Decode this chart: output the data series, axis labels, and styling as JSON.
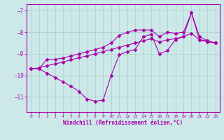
{
  "xlabel": "Windchill (Refroidissement éolien,°C)",
  "xlim": [
    -0.5,
    23.5
  ],
  "ylim": [
    -11.7,
    -6.7
  ],
  "yticks": [
    -11,
    -10,
    -9,
    -8,
    -7
  ],
  "xticks": [
    0,
    1,
    2,
    3,
    4,
    5,
    6,
    7,
    8,
    9,
    10,
    11,
    12,
    13,
    14,
    15,
    16,
    17,
    18,
    19,
    20,
    21,
    22,
    23
  ],
  "bg_color": "#cce8e8",
  "grid_color": "#aacccc",
  "line_color": "#aa00aa",
  "x": [
    0,
    1,
    2,
    3,
    4,
    5,
    6,
    7,
    8,
    9,
    10,
    11,
    12,
    13,
    14,
    15,
    16,
    17,
    18,
    19,
    20,
    21,
    22,
    23
  ],
  "line_main": [
    -9.7,
    -9.7,
    -9.9,
    -10.1,
    -10.3,
    -10.5,
    -10.75,
    -11.1,
    -11.2,
    -11.15,
    -10.0,
    -9.05,
    -8.9,
    -8.8,
    -8.2,
    -8.1,
    -9.0,
    -8.85,
    -8.35,
    -8.2,
    -7.1,
    -8.35,
    -8.45,
    -8.5
  ],
  "line_upper": [
    -9.7,
    -9.7,
    -9.25,
    -9.25,
    -9.2,
    -9.1,
    -9.0,
    -8.9,
    -8.8,
    -8.7,
    -8.5,
    -8.15,
    -8.0,
    -7.9,
    -7.9,
    -7.9,
    -8.2,
    -8.0,
    -8.05,
    -8.0,
    -7.1,
    -8.2,
    -8.4,
    -8.5
  ],
  "line_straight": [
    -9.7,
    -9.65,
    -9.55,
    -9.47,
    -9.38,
    -9.28,
    -9.18,
    -9.1,
    -9.0,
    -8.9,
    -8.8,
    -8.7,
    -8.6,
    -8.5,
    -8.4,
    -8.3,
    -8.45,
    -8.35,
    -8.3,
    -8.2,
    -8.05,
    -8.35,
    -8.4,
    -8.5
  ]
}
